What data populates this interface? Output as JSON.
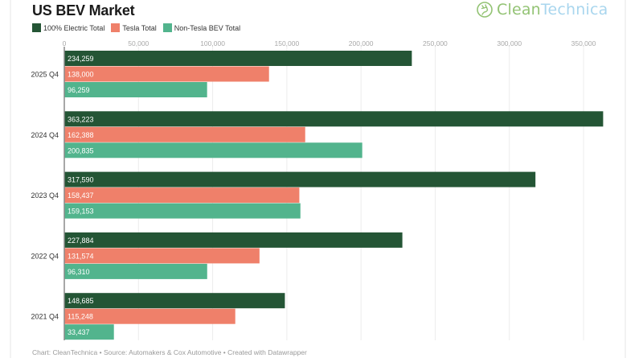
{
  "brand": {
    "logo_clean": "Clean",
    "logo_technica": "Technica",
    "logo_icon": "plug-circle-icon",
    "clean_color": "#93c374",
    "technica_color": "#a9d6ee"
  },
  "footer": "Chart: CleanTechnica • Source: Automakers & Cox Automotive • Created with Datawrapper",
  "chart_data": {
    "type": "bar",
    "orientation": "horizontal",
    "title": "US BEV Market",
    "xlabel": "",
    "ylabel": "",
    "xlim": [
      0,
      360000
    ],
    "grid": true,
    "legend_placement": "top-left",
    "xticks": [
      0,
      50000,
      100000,
      150000,
      200000,
      250000,
      300000,
      350000
    ],
    "xtick_labels": [
      "0",
      "50,000",
      "100,000",
      "150,000",
      "200,000",
      "250,000",
      "300,000",
      "350,000"
    ],
    "categories": [
      "2025 Q4",
      "2024 Q4",
      "2023 Q4",
      "2022 Q4",
      "2021 Q4"
    ],
    "series": [
      {
        "name": "100% Electric Total",
        "color": "#245535",
        "values": [
          234259,
          363223,
          317590,
          227884,
          148685
        ],
        "labels": [
          "234,259",
          "363,223",
          "317,590",
          "227,884",
          "148,685"
        ]
      },
      {
        "name": "Tesla Total",
        "color": "#ef806a",
        "values": [
          138000,
          162388,
          158437,
          131574,
          115248
        ],
        "labels": [
          "138,000",
          "162,388",
          "158,437",
          "131,574",
          "115,248"
        ]
      },
      {
        "name": "Non-Tesla BEV Total",
        "color": "#52b48d",
        "values": [
          96259,
          200835,
          159153,
          96310,
          33437
        ],
        "labels": [
          "96,259",
          "200,835",
          "159,153",
          "96,310",
          "33,437"
        ]
      }
    ]
  }
}
